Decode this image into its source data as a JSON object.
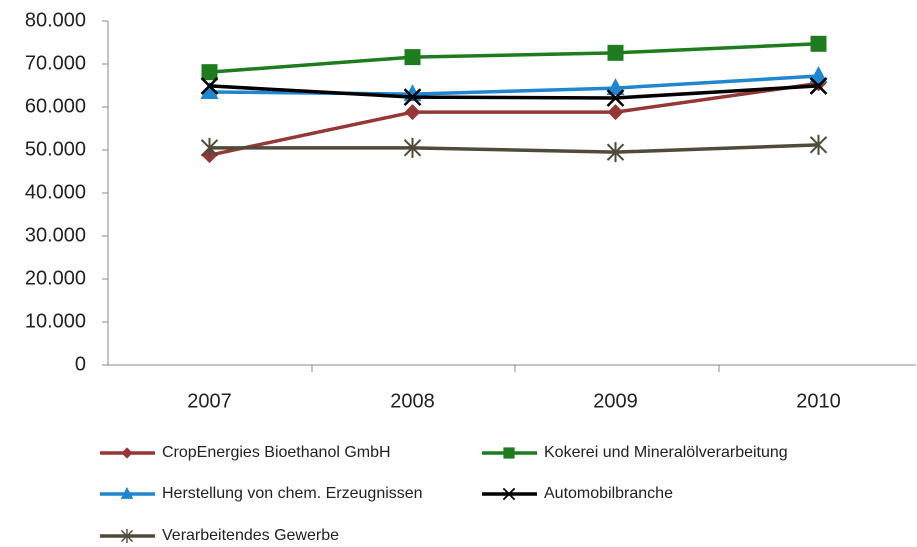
{
  "chart_data": {
    "type": "line",
    "categories": [
      "2007",
      "2008",
      "2009",
      "2010"
    ],
    "ylim": [
      0,
      80000
    ],
    "yticks": [
      0,
      {
        "value": 10000,
        "label": "10.000"
      },
      {
        "value": 20000,
        "label": "20.000"
      },
      {
        "value": 30000,
        "label": "30.000"
      },
      {
        "value": 40000,
        "label": "40.000"
      },
      {
        "value": 50000,
        "label": "50.000"
      },
      {
        "value": 60000,
        "label": "60.000"
      },
      {
        "value": 70000,
        "label": "70.000"
      },
      {
        "value": 80000,
        "label": "80.000"
      }
    ],
    "grid": false,
    "series": [
      {
        "name": "CropEnergies Bioethanol GmbH",
        "color": "#953735",
        "marker": "diamond",
        "values": [
          48800,
          58800,
          58800,
          65500
        ]
      },
      {
        "name": "Kokerei und Mineralölverarbeitung",
        "color": "#1e7b1e",
        "marker": "square",
        "values": [
          68100,
          71600,
          72600,
          74700
        ]
      },
      {
        "name": "Herstellung von chem. Erzeugnissen",
        "color": "#1f86d0",
        "marker": "triangle",
        "values": [
          63500,
          63000,
          64400,
          67200
        ]
      },
      {
        "name": "Automobilbranche",
        "color": "#000000",
        "marker": "x",
        "values": [
          64900,
          62300,
          62100,
          64900
        ]
      },
      {
        "name": "Verarbeitendes Gewerbe",
        "color": "#4f4a3a",
        "marker": "star",
        "values": [
          50500,
          50500,
          49500,
          51200
        ]
      }
    ]
  }
}
